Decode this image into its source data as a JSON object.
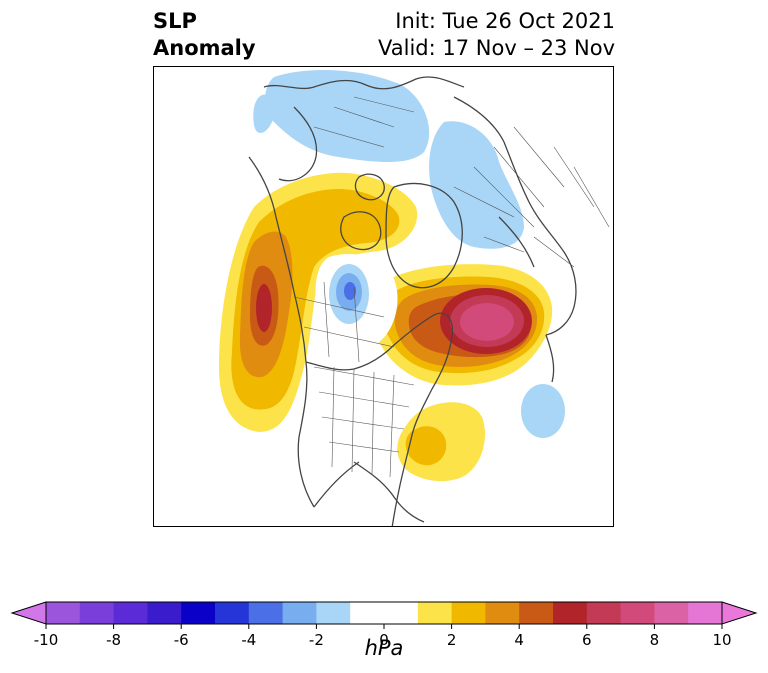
{
  "header": {
    "field_line1": "SLP",
    "field_line2": "Anomaly",
    "init_line": "Init: Tue 26 Oct 2021",
    "valid_line": "Valid: 17 Nov – 23 Nov"
  },
  "colorbar": {
    "unit": "hPa",
    "ticks": [
      "-10",
      "-8",
      "-6",
      "-4",
      "-2",
      "0",
      "2",
      "4",
      "6",
      "8",
      "10"
    ],
    "levels": [
      -10,
      -9,
      -8,
      -7,
      -6,
      -5,
      -4,
      -3,
      -2,
      -1,
      1,
      2,
      3,
      4,
      5,
      6,
      7,
      8,
      9,
      10
    ],
    "colors": [
      "#9b55dd",
      "#7a3fdb",
      "#5a2bd6",
      "#3a1ccd",
      "#0a00c8",
      "#2535d8",
      "#4a6fe6",
      "#78aef0",
      "#a9d6f7",
      "#ffffff",
      "#ffffff",
      "#fde34a",
      "#f1b800",
      "#e08c10",
      "#c85a15",
      "#b0242a",
      "#c23a55",
      "#d24a7a",
      "#dc62a6",
      "#e676d6"
    ],
    "under_color": "#d177e9",
    "over_color": "#ea78db"
  },
  "map": {
    "colors": {
      "light_blue": "#a9d6f7",
      "mid_blue": "#78aef0",
      "blue": "#4a6fe6",
      "yellow": "#fde34a",
      "gold": "#f1b800",
      "orange": "#e08c10",
      "dark_orange": "#c85a15",
      "red": "#b0242a",
      "crimson": "#c23a55",
      "pink": "#d24a7a",
      "coast": "#444444"
    }
  }
}
